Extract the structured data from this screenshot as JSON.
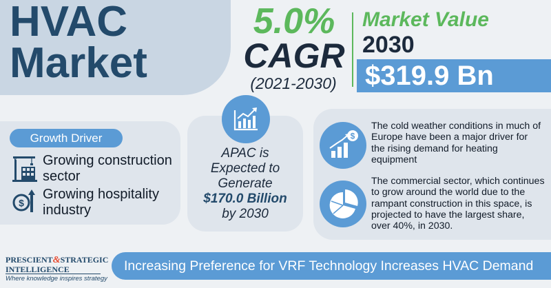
{
  "title": {
    "line1": "HVAC",
    "line2": "Market"
  },
  "cagr": {
    "percent": "5.0%",
    "label": "CAGR",
    "period": "(2021-2030)"
  },
  "market_value": {
    "title": "Market Value",
    "year": "2030",
    "value": "$319.9 Bn"
  },
  "growth_driver": {
    "badge": "Growth Driver",
    "items": [
      {
        "icon": "construction-crane-icon",
        "line1": "Growing construction",
        "line2": "sector"
      },
      {
        "icon": "dollar-growth-icon",
        "line1": "Growing hospitality",
        "line2": "industry"
      }
    ]
  },
  "apac": {
    "icon": "bar-chart-growth-icon",
    "line1": "APAC is",
    "line2": "Expected to",
    "line3": "Generate",
    "amount": "$170.0 Billion",
    "line5": "by 2030"
  },
  "insights": [
    {
      "icon": "dollar-bar-chart-icon",
      "lines": [
        "The cold weather conditions in much of",
        "Europe have been a major driver for",
        "the rising demand for heating",
        "equipment"
      ]
    },
    {
      "icon": "pie-chart-icon",
      "lines": [
        "The commercial sector, which continues",
        "to grow around the world due to the",
        "rampant construction in this space, is",
        "projected to have the largest share,",
        "over 40%, in 2030."
      ]
    }
  ],
  "brand": {
    "name_part1": "PRESCIENT",
    "ampersand": "&",
    "name_part2": "STRATEGIC",
    "name_line2": "INTELLIGENCE",
    "tagline": "Where knowledge inspires strategy"
  },
  "banner": "Increasing Preference for VRF Technology Increases HVAC Demand",
  "colors": {
    "navy": "#234a6b",
    "green": "#5cb85c",
    "blue": "#5b9bd5",
    "panel": "#c9d6e3",
    "card": "#dfe5ec"
  }
}
